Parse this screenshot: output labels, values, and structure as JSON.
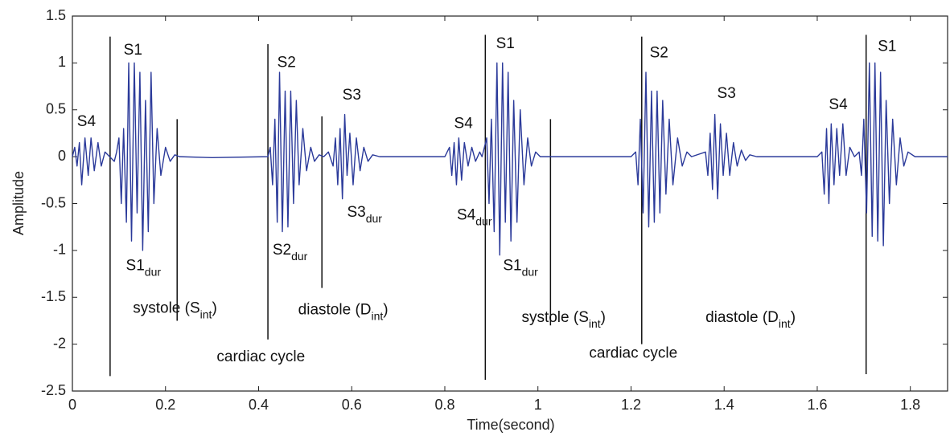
{
  "chart_data": {
    "type": "line",
    "xlabel": "Time(second)",
    "ylabel": "Amplitude",
    "color": "#2b3a9a",
    "xlim": [
      0,
      1.88
    ],
    "ylim": [
      -2.5,
      1.5
    ],
    "xticks": [
      0,
      0.2,
      0.4,
      0.6,
      0.8,
      1,
      1.2,
      1.4,
      1.6,
      1.8
    ],
    "yticks": [
      -2.5,
      -2,
      -1.5,
      -1,
      -0.5,
      0,
      0.5,
      1,
      1.5
    ],
    "x": [
      0,
      0.005,
      0.01,
      0.015,
      0.02,
      0.027,
      0.034,
      0.04,
      0.047,
      0.055,
      0.062,
      0.07,
      0.08,
      0.09,
      0.095,
      0.1,
      0.105,
      0.11,
      0.116,
      0.121,
      0.127,
      0.133,
      0.139,
      0.145,
      0.151,
      0.157,
      0.163,
      0.169,
      0.175,
      0.182,
      0.19,
      0.2,
      0.21,
      0.22,
      0.23,
      0.3,
      0.42,
      0.425,
      0.43,
      0.435,
      0.44,
      0.445,
      0.451,
      0.457,
      0.463,
      0.469,
      0.475,
      0.481,
      0.487,
      0.495,
      0.503,
      0.512,
      0.52,
      0.53,
      0.54,
      0.55,
      0.56,
      0.565,
      0.57,
      0.575,
      0.58,
      0.585,
      0.59,
      0.596,
      0.603,
      0.61,
      0.618,
      0.626,
      0.635,
      0.645,
      0.66,
      0.8,
      0.81,
      0.815,
      0.82,
      0.825,
      0.83,
      0.836,
      0.842,
      0.85,
      0.858,
      0.866,
      0.875,
      0.88,
      0.89,
      0.895,
      0.9,
      0.906,
      0.912,
      0.918,
      0.924,
      0.93,
      0.936,
      0.942,
      0.948,
      0.955,
      0.962,
      0.97,
      0.978,
      0.986,
      0.995,
      1.005,
      1.2,
      1.21,
      1.215,
      1.22,
      1.226,
      1.232,
      1.238,
      1.244,
      1.25,
      1.256,
      1.262,
      1.268,
      1.275,
      1.282,
      1.29,
      1.3,
      1.31,
      1.32,
      1.33,
      1.36,
      1.365,
      1.37,
      1.375,
      1.38,
      1.386,
      1.392,
      1.398,
      1.405,
      1.412,
      1.42,
      1.428,
      1.437,
      1.446,
      1.455,
      1.47,
      1.6,
      1.61,
      1.615,
      1.62,
      1.625,
      1.63,
      1.636,
      1.642,
      1.648,
      1.655,
      1.662,
      1.67,
      1.68,
      1.69,
      1.695,
      1.7,
      1.706,
      1.712,
      1.718,
      1.724,
      1.73,
      1.736,
      1.742,
      1.748,
      1.755,
      1.762,
      1.77,
      1.778,
      1.786,
      1.795,
      1.81,
      1.88
    ],
    "values": [
      0,
      0.1,
      -0.1,
      0.15,
      -0.3,
      0.2,
      -0.2,
      0.2,
      -0.15,
      0.15,
      -0.1,
      0.05,
      0,
      -0.05,
      0.05,
      0.2,
      -0.5,
      0.3,
      -0.7,
      1,
      -0.9,
      1,
      -0.6,
      0.9,
      -1,
      0.6,
      -0.8,
      0.9,
      -0.5,
      0.3,
      -0.2,
      0.1,
      -0.05,
      0.02,
      0,
      -0.01,
      0,
      0.1,
      -0.3,
      0.4,
      -0.7,
      0.9,
      -0.8,
      0.7,
      -0.75,
      0.7,
      -0.5,
      0.6,
      -0.3,
      0.3,
      -0.15,
      0.1,
      -0.05,
      0.02,
      0,
      0.05,
      -0.1,
      0.2,
      -0.3,
      0.3,
      -0.45,
      0.45,
      -0.2,
      0.25,
      -0.3,
      0.2,
      -0.15,
      0.1,
      -0.05,
      0.02,
      0,
      0,
      0.1,
      -0.2,
      0.15,
      -0.3,
      0.2,
      -0.25,
      0.15,
      -0.1,
      0.1,
      -0.05,
      0.05,
      0,
      0.2,
      -0.5,
      0.4,
      -0.8,
      1,
      -1.05,
      1,
      -0.7,
      0.9,
      -0.9,
      0.6,
      -0.7,
      0.5,
      -0.3,
      0.2,
      -0.1,
      0.05,
      0,
      0,
      0.05,
      -0.3,
      0.4,
      -0.6,
      0.9,
      -0.75,
      0.7,
      -0.7,
      0.7,
      -0.6,
      0.6,
      -0.4,
      0.4,
      -0.3,
      0.2,
      -0.1,
      0.05,
      0,
      0.05,
      -0.2,
      0.25,
      -0.35,
      0.45,
      -0.45,
      0.35,
      -0.2,
      0.25,
      -0.2,
      0.15,
      -0.1,
      0.07,
      -0.04,
      0.02,
      0,
      0,
      0.05,
      -0.4,
      0.3,
      -0.5,
      0.35,
      -0.3,
      0.3,
      -0.2,
      0.35,
      -0.2,
      0.1,
      0,
      0.05,
      -0.2,
      0.4,
      -0.6,
      1,
      -0.85,
      1,
      -0.9,
      0.9,
      -0.95,
      0.6,
      -0.5,
      0.4,
      -0.3,
      0.2,
      -0.1,
      0.05,
      0,
      0
    ],
    "vlines": [
      {
        "x": 0.081,
        "y": [
          1.28,
          -2.34
        ]
      },
      {
        "x": 0.225,
        "y": [
          0.4,
          -1.75
        ]
      },
      {
        "x": 0.42,
        "y": [
          1.2,
          -1.95
        ]
      },
      {
        "x": 0.536,
        "y": [
          0.43,
          -1.4
        ]
      },
      {
        "x": 0.887,
        "y": [
          1.3,
          -2.38
        ]
      },
      {
        "x": 1.027,
        "y": [
          0.4,
          -1.8
        ]
      },
      {
        "x": 1.223,
        "y": [
          1.28,
          -2.0
        ]
      },
      {
        "x": 1.705,
        "y": [
          1.3,
          -2.32
        ]
      }
    ],
    "annotations": [
      {
        "text": "S4",
        "x": 0.01,
        "y": 0.37
      },
      {
        "text": "S1",
        "x": 0.11,
        "y": 1.13
      },
      {
        "text": "S1",
        "sub": "dur",
        "x": 0.115,
        "y": -1.17
      },
      {
        "text": "systole (S",
        "sub": "int",
        "tail": ")",
        "x": 0.13,
        "y": -1.62
      },
      {
        "text": "cardiac cycle",
        "x": 0.31,
        "y": -2.14
      },
      {
        "text": "S2",
        "x": 0.44,
        "y": 1.0
      },
      {
        "text": "S2",
        "sub": "dur",
        "x": 0.43,
        "y": -1.0
      },
      {
        "text": "S3",
        "x": 0.58,
        "y": 0.65
      },
      {
        "text": "S3",
        "sub": "dur",
        "x": 0.59,
        "y": -0.6
      },
      {
        "text": "diastole (D",
        "sub": "int",
        "tail": ")",
        "x": 0.485,
        "y": -1.64
      },
      {
        "text": "S4",
        "x": 0.82,
        "y": 0.35
      },
      {
        "text": "S4",
        "sub": "dur",
        "x": 0.826,
        "y": -0.63
      },
      {
        "text": "S1",
        "x": 0.91,
        "y": 1.2
      },
      {
        "text": "S1",
        "sub": "dur",
        "x": 0.925,
        "y": -1.17
      },
      {
        "text": "systole (S",
        "sub": "int",
        "tail": ")",
        "x": 0.965,
        "y": -1.72
      },
      {
        "text": "cardiac cycle",
        "x": 1.11,
        "y": -2.1
      },
      {
        "text": "S2",
        "x": 1.24,
        "y": 1.1
      },
      {
        "text": "S3",
        "x": 1.385,
        "y": 0.67
      },
      {
        "text": "diastole (D",
        "sub": "int",
        "tail": ")",
        "x": 1.36,
        "y": -1.72
      },
      {
        "text": "S4",
        "x": 1.625,
        "y": 0.55
      },
      {
        "text": "S1",
        "x": 1.73,
        "y": 1.17
      }
    ]
  }
}
